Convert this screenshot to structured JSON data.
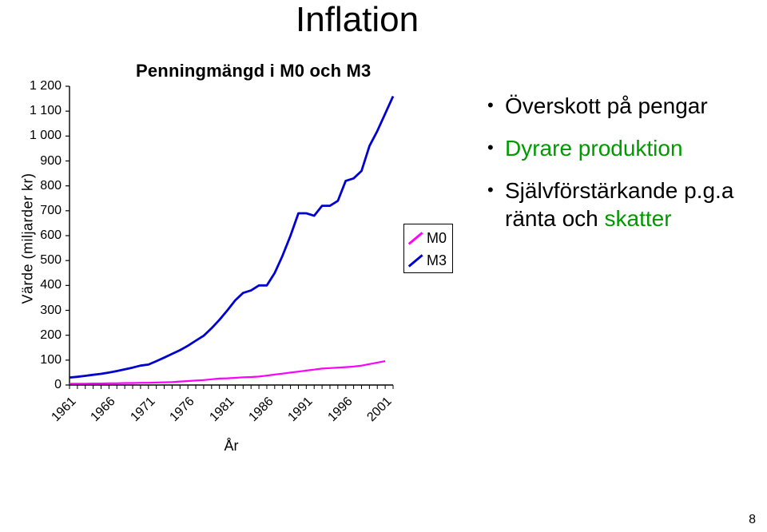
{
  "page": {
    "title": "Inflation",
    "page_number": "8"
  },
  "chart": {
    "type": "line",
    "title": "Penningmängd i M0 och M3",
    "x_label": "År",
    "y_label": "Värde (miljarder kr)",
    "background_color": "#ffffff",
    "axis_color": "#000000",
    "tick_color": "#000000",
    "ylim": [
      0,
      1200
    ],
    "y_ticks": [
      0,
      100,
      200,
      300,
      400,
      500,
      600,
      700,
      800,
      900,
      1000,
      1100,
      1200
    ],
    "x_ticks_major": [
      1961,
      1966,
      1971,
      1976,
      1981,
      1986,
      1991,
      1996,
      2001
    ],
    "x_range": [
      1961,
      2002
    ],
    "series": [
      {
        "name": "M0",
        "legend_label": "M0",
        "color": "#ff00ff",
        "line_width": 2.2,
        "data": [
          [
            1961,
            5
          ],
          [
            1962,
            5
          ],
          [
            1963,
            5
          ],
          [
            1964,
            6
          ],
          [
            1965,
            6
          ],
          [
            1966,
            7
          ],
          [
            1967,
            7
          ],
          [
            1968,
            8
          ],
          [
            1969,
            8
          ],
          [
            1970,
            9
          ],
          [
            1971,
            9
          ],
          [
            1972,
            10
          ],
          [
            1973,
            11
          ],
          [
            1974,
            12
          ],
          [
            1975,
            14
          ],
          [
            1976,
            16
          ],
          [
            1977,
            18
          ],
          [
            1978,
            20
          ],
          [
            1979,
            23
          ],
          [
            1980,
            26
          ],
          [
            1981,
            27
          ],
          [
            1982,
            29
          ],
          [
            1983,
            31
          ],
          [
            1984,
            32
          ],
          [
            1985,
            34
          ],
          [
            1986,
            38
          ],
          [
            1987,
            42
          ],
          [
            1988,
            46
          ],
          [
            1989,
            50
          ],
          [
            1990,
            54
          ],
          [
            1991,
            58
          ],
          [
            1992,
            62
          ],
          [
            1993,
            66
          ],
          [
            1994,
            68
          ],
          [
            1995,
            70
          ],
          [
            1996,
            72
          ],
          [
            1997,
            74
          ],
          [
            1998,
            78
          ],
          [
            1999,
            84
          ],
          [
            2000,
            90
          ],
          [
            2001,
            96
          ]
        ]
      },
      {
        "name": "M3",
        "legend_label": "M3",
        "color": "#0000d0",
        "line_width": 2.8,
        "data": [
          [
            1961,
            30
          ],
          [
            1962,
            33
          ],
          [
            1963,
            37
          ],
          [
            1964,
            41
          ],
          [
            1965,
            45
          ],
          [
            1966,
            50
          ],
          [
            1967,
            56
          ],
          [
            1968,
            63
          ],
          [
            1969,
            70
          ],
          [
            1970,
            78
          ],
          [
            1971,
            82
          ],
          [
            1972,
            96
          ],
          [
            1973,
            110
          ],
          [
            1974,
            125
          ],
          [
            1975,
            140
          ],
          [
            1976,
            158
          ],
          [
            1977,
            178
          ],
          [
            1978,
            198
          ],
          [
            1979,
            228
          ],
          [
            1980,
            262
          ],
          [
            1981,
            300
          ],
          [
            1982,
            340
          ],
          [
            1983,
            370
          ],
          [
            1984,
            380
          ],
          [
            1985,
            400
          ],
          [
            1986,
            400
          ],
          [
            1987,
            450
          ],
          [
            1988,
            520
          ],
          [
            1989,
            600
          ],
          [
            1990,
            690
          ],
          [
            1991,
            690
          ],
          [
            1992,
            680
          ],
          [
            1993,
            720
          ],
          [
            1994,
            720
          ],
          [
            1995,
            740
          ],
          [
            1996,
            820
          ],
          [
            1997,
            830
          ],
          [
            1998,
            860
          ],
          [
            1999,
            960
          ],
          [
            2000,
            1020
          ],
          [
            2001,
            1090
          ],
          [
            2002,
            1160
          ]
        ]
      }
    ],
    "legend": {
      "items": [
        {
          "label": "M0",
          "color": "#ff00ff"
        },
        {
          "label": "M3",
          "color": "#0000d0"
        }
      ]
    }
  },
  "bullets": [
    {
      "segments": [
        {
          "text": "Överskott på pengar",
          "color": "#000000"
        }
      ]
    },
    {
      "segments": [
        {
          "text": "Dyrare produktion",
          "color": "#009a00"
        }
      ]
    },
    {
      "segments": [
        {
          "text": "Självförstärkande p.g.a ränta och ",
          "color": "#000000"
        },
        {
          "text": "skatter",
          "color": "#009a00"
        }
      ]
    }
  ],
  "style": {
    "title_fontsize": 44,
    "chart_title_fontsize": 22,
    "axis_label_fontsize": 18,
    "tick_fontsize": 16,
    "legend_fontsize": 18,
    "bullet_fontsize": 28
  }
}
